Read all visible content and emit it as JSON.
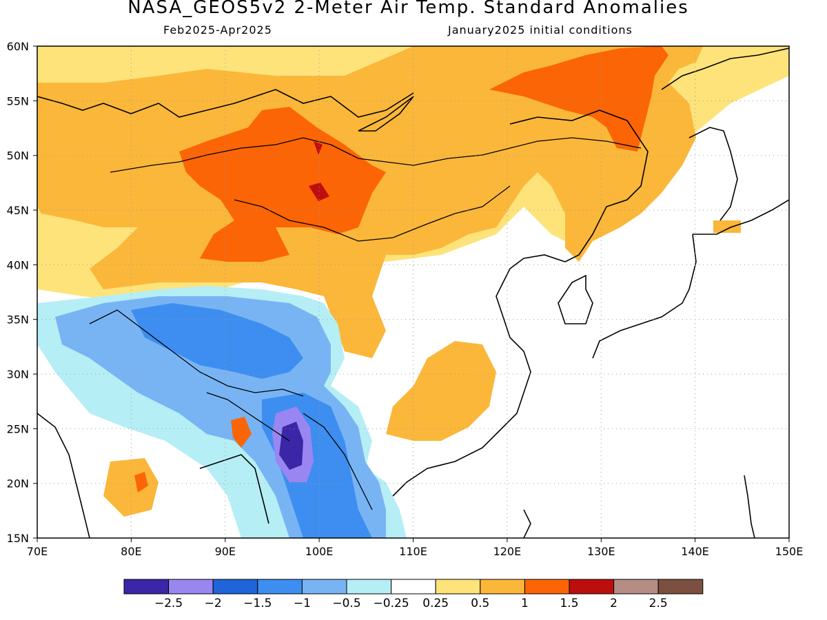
{
  "title": "NASA_GEOS5v2 2-Meter Air Temp. Standard Anomalies",
  "subtitle_left": "Feb2025-Apr2025",
  "subtitle_right": "January2025 initial conditions",
  "map": {
    "lon_range": [
      70,
      150
    ],
    "lat_range": [
      15,
      60
    ],
    "lon_ticks": [
      "70E",
      "80E",
      "90E",
      "100E",
      "110E",
      "120E",
      "130E",
      "140E",
      "150E"
    ],
    "lat_ticks": [
      "15N",
      "20N",
      "25N",
      "30N",
      "35N",
      "40N",
      "45N",
      "50N",
      "55N",
      "60N"
    ],
    "grid": "dotted",
    "regions": [
      {
        "name": "Siberia / northern band",
        "anomaly_class": "0.5 to 1"
      },
      {
        "name": "Northeast Siberia",
        "anomaly_class": "1 to 1.5"
      },
      {
        "name": "Mongolia / Altai",
        "anomaly_class": "1 to 1.5",
        "peak": "1.5 to 2"
      },
      {
        "name": "Northern China",
        "anomaly_class": "0.5 to 1"
      },
      {
        "name": "Tibetan Plateau",
        "anomaly_class": "-1.5 to -1"
      },
      {
        "name": "Myanmar",
        "anomaly_class": "-2.5 to -2"
      },
      {
        "name": "South-central China",
        "anomaly_class": "0.5 to 1"
      },
      {
        "name": "Eastern China / Korea / Japan",
        "anomaly_class": "-0.25 to 0.25"
      }
    ]
  },
  "colorbar": {
    "colors": [
      "#3a26a6",
      "#9a86f0",
      "#1f64d9",
      "#3d8ef0",
      "#78b4f4",
      "#b6eef6",
      "#ffffff",
      "#fde37a",
      "#fbb73a",
      "#fb6506",
      "#bd0e0e",
      "#b58d83",
      "#7c5040"
    ],
    "labels": [
      "-2.5",
      "-2",
      "-1.5",
      "-1",
      "-0.5",
      "-0.25",
      "0.25",
      "0.5",
      "1",
      "1.5",
      "2",
      "2.5"
    ]
  }
}
